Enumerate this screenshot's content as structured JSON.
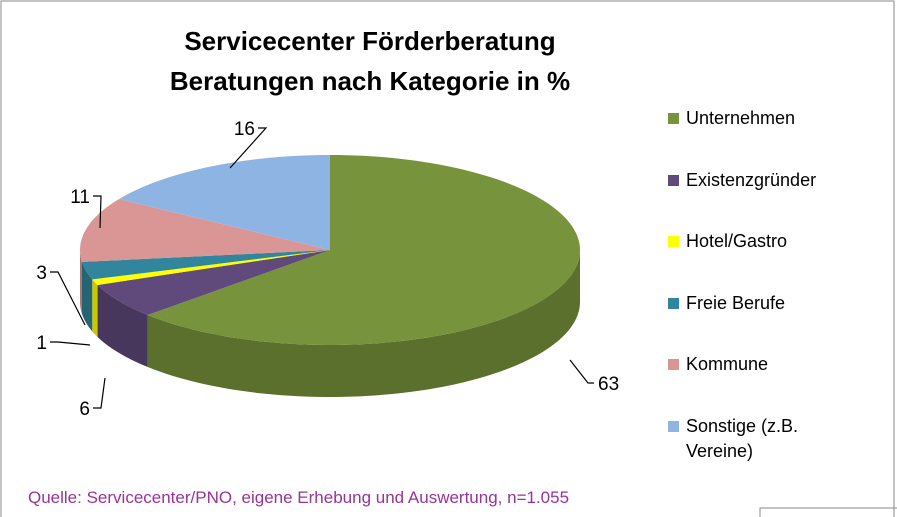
{
  "chart_data": {
    "type": "pie3d",
    "title": "Servicecenter Förderberatung",
    "subtitle": "Beratungen nach Kategorie in %",
    "categories": [
      "Unternehmen",
      "Existenzgründer",
      "Hotel/Gastro",
      "Freie Berufe",
      "Kommune",
      "Sonstige (z.B. Vereine)"
    ],
    "values": [
      63,
      6,
      1,
      3,
      11,
      16
    ],
    "colors": [
      "#77933c",
      "#604a7b",
      "#ffff00",
      "#31859c",
      "#d99694",
      "#8eb4e3"
    ],
    "side_colors": [
      "#5a702c",
      "#47375c",
      "#c8c800",
      "#246473",
      "#a87270",
      "#6a88ad"
    ],
    "annotation": "Quelle: Servicecenter/PNO, eigene Erhebung und Auswertung, n=1.055",
    "legend": "right"
  }
}
